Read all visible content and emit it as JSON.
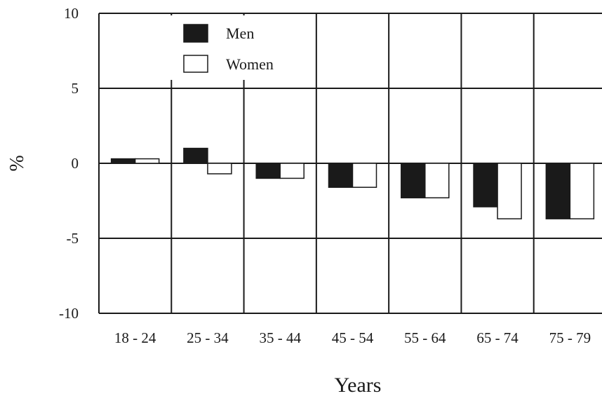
{
  "chart_data": {
    "type": "bar",
    "title": "",
    "xlabel": "Years",
    "ylabel": "%",
    "ylim": [
      -10,
      10
    ],
    "yticks": [
      "10",
      "5",
      "0",
      "-5",
      "-10"
    ],
    "categories": [
      "18 - 24",
      "25 - 34",
      "35 - 44",
      "45 - 54",
      "55 - 64",
      "65 - 74",
      "75 - 79"
    ],
    "series": [
      {
        "name": "Men",
        "color": "#1a1a1a",
        "values": [
          0.3,
          1.0,
          -1.0,
          -1.6,
          -2.3,
          -2.9,
          -3.7
        ]
      },
      {
        "name": "Women",
        "color": "#ffffff",
        "values": [
          0.3,
          -0.7,
          -1.0,
          -1.6,
          -2.3,
          -3.7,
          -3.7
        ]
      }
    ],
    "grid": true,
    "legend_position": "top-left"
  }
}
